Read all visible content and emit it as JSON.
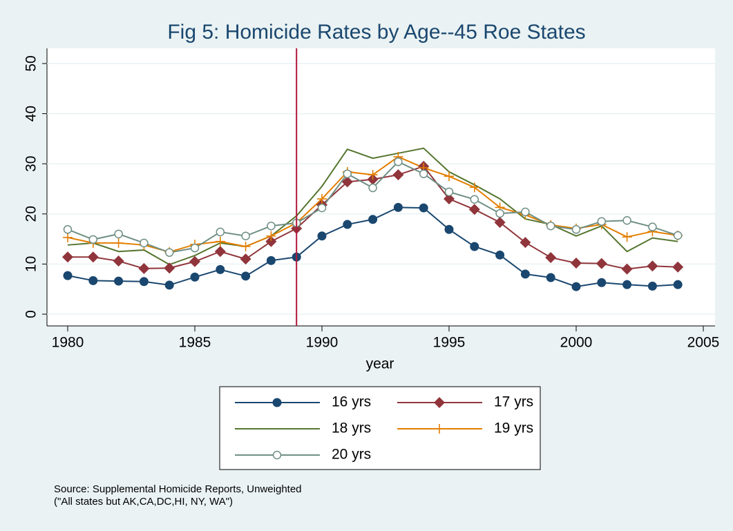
{
  "chart_data": {
    "type": "line",
    "title": "Fig 5: Homicide Rates by Age--45 Roe States",
    "x_label": "year",
    "x": [
      1980,
      1981,
      1982,
      1983,
      1984,
      1985,
      1986,
      1987,
      1988,
      1989,
      1990,
      1991,
      1992,
      1993,
      1994,
      1995,
      1996,
      1997,
      1998,
      1999,
      2000,
      2001,
      2002,
      2003,
      2004
    ],
    "series": [
      {
        "name": "16 yrs",
        "color": "#1a476f",
        "marker": "circle",
        "values": [
          7.7,
          6.7,
          6.6,
          6.5,
          5.8,
          7.4,
          8.9,
          7.6,
          10.7,
          11.4,
          15.6,
          17.9,
          18.9,
          21.3,
          21.2,
          16.9,
          13.5,
          11.8,
          8.0,
          7.3,
          5.5,
          6.3,
          5.9,
          5.6,
          5.9
        ]
      },
      {
        "name": "17 yrs",
        "color": "#90353b",
        "marker": "diamond",
        "values": [
          11.4,
          11.4,
          10.6,
          9.1,
          9.2,
          10.5,
          12.5,
          11.0,
          14.5,
          17.1,
          21.8,
          26.4,
          26.9,
          27.8,
          29.5,
          23.0,
          20.9,
          18.3,
          14.3,
          11.3,
          10.2,
          10.1,
          9.0,
          9.6,
          9.4
        ]
      },
      {
        "name": "18 yrs",
        "color": "#55752f",
        "marker": "none",
        "values": [
          13.8,
          14.2,
          12.5,
          12.8,
          9.9,
          11.7,
          14.2,
          13.5,
          15.6,
          19.6,
          25.5,
          32.9,
          31.1,
          32.1,
          33.1,
          28.4,
          25.8,
          23.0,
          19.0,
          17.9,
          15.6,
          17.6,
          12.5,
          15.2,
          14.5
        ]
      },
      {
        "name": "19 yrs",
        "color": "#e37e00",
        "marker": "plus",
        "values": [
          15.3,
          14.2,
          14.2,
          13.8,
          12.4,
          13.9,
          14.5,
          13.5,
          15.6,
          18.2,
          23.0,
          28.4,
          27.8,
          31.4,
          29.2,
          27.5,
          25.3,
          21.3,
          19.8,
          17.8,
          17.1,
          17.9,
          15.4,
          16.5,
          15.7
        ]
      },
      {
        "name": "20 yrs",
        "color": "#6e8e84",
        "marker": "hollow-circle",
        "values": [
          16.9,
          14.9,
          16.0,
          14.2,
          12.3,
          13.2,
          16.4,
          15.6,
          17.6,
          18.2,
          21.2,
          28.0,
          25.2,
          30.4,
          28.0,
          24.4,
          22.9,
          20.1,
          20.4,
          17.6,
          16.9,
          18.5,
          18.7,
          17.4,
          15.7
        ]
      }
    ],
    "xlim": [
      1980,
      2005
    ],
    "xticks": [
      1980,
      1985,
      1990,
      1995,
      2000,
      2005
    ],
    "ylim": [
      0,
      50
    ],
    "yticks": [
      0,
      10,
      20,
      30,
      40,
      50
    ],
    "grid": true,
    "xline": {
      "value": 1989,
      "color": "#b0173a"
    },
    "legend_position": "bottom",
    "notes": [
      "Source: Supplemental Homicide Reports, Unweighted",
      "(\"All states but AK,CA,DC,HI, NY, WA\")"
    ]
  }
}
